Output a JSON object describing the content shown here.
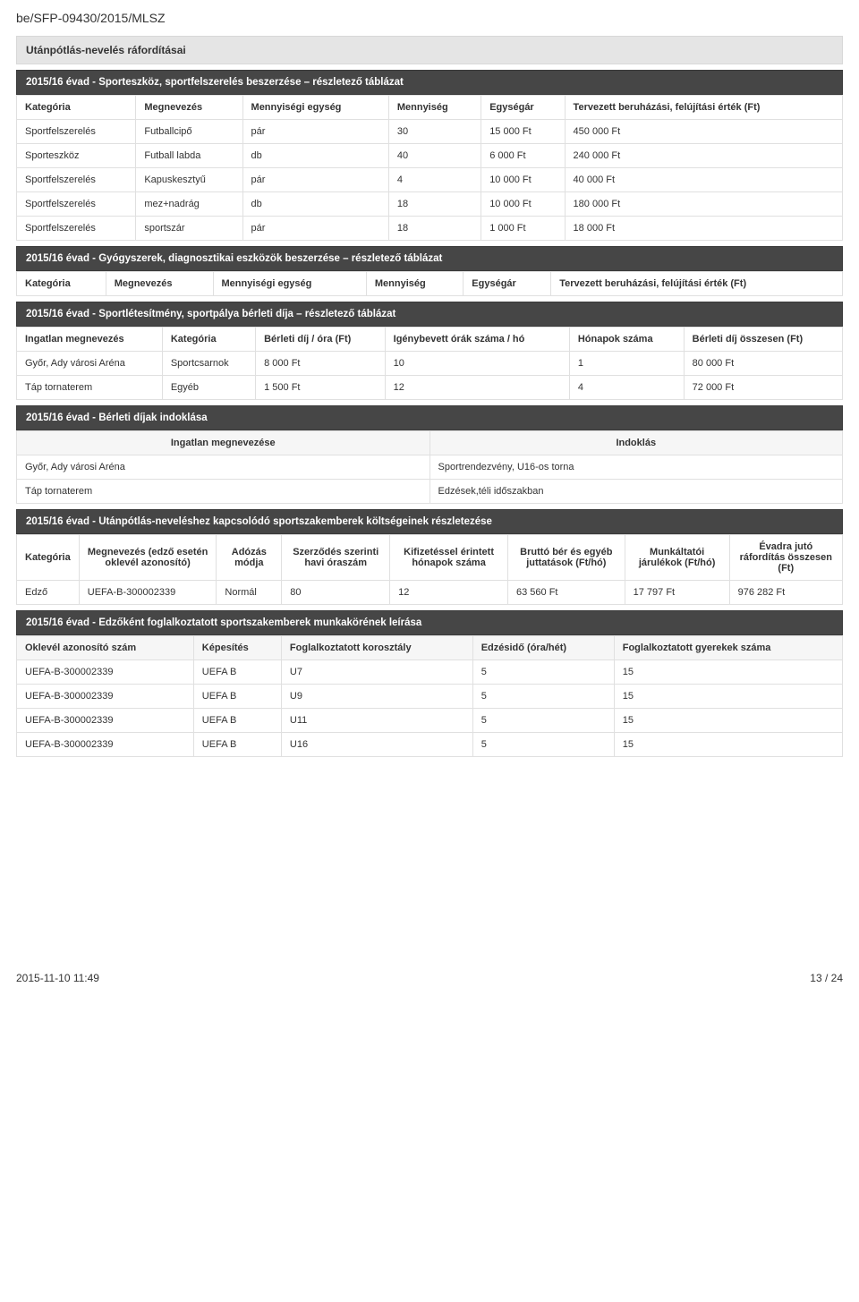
{
  "doc_id": "be/SFP-09430/2015/MLSZ",
  "panels": {
    "main": "Utánpótlás-nevelés ráfordításai",
    "t1": "2015/16 évad - Sporteszköz, sportfelszerelés beszerzése – részletező táblázat",
    "t2": "2015/16 évad - Gyógyszerek, diagnosztikai eszközök beszerzése – részletező táblázat",
    "t3": "2015/16 évad - Sportlétesítmény, sportpálya bérleti díja – részletező táblázat",
    "t4": "2015/16 évad - Bérleti díjak indoklása",
    "t5": "2015/16 évad - Utánpótlás-neveléshez kapcsolódó sportszakemberek költségeinek részletezése",
    "t6": "2015/16 évad - Edzőként foglalkoztatott sportszakemberek munkakörének leírása"
  },
  "t1": {
    "cols": [
      "Kategória",
      "Megnevezés",
      "Mennyiségi egység",
      "Mennyiség",
      "Egységár",
      "Tervezett beruházási, felújítási érték (Ft)"
    ],
    "rows": [
      [
        "Sportfelszerelés",
        "Futballcipő",
        "pár",
        "30",
        "15 000 Ft",
        "450 000 Ft"
      ],
      [
        "Sporteszköz",
        "Futball labda",
        "db",
        "40",
        "6 000 Ft",
        "240 000 Ft"
      ],
      [
        "Sportfelszerelés",
        "Kapuskesztyű",
        "pár",
        "4",
        "10 000 Ft",
        "40 000 Ft"
      ],
      [
        "Sportfelszerelés",
        "mez+nadrág",
        "db",
        "18",
        "10 000 Ft",
        "180 000 Ft"
      ],
      [
        "Sportfelszerelés",
        "sportszár",
        "pár",
        "18",
        "1 000 Ft",
        "18 000 Ft"
      ]
    ]
  },
  "t2": {
    "cols": [
      "Kategória",
      "Megnevezés",
      "Mennyiségi egység",
      "Mennyiség",
      "Egységár",
      "Tervezett beruházási, felújítási érték (Ft)"
    ]
  },
  "t3": {
    "cols": [
      "Ingatlan megnevezés",
      "Kategória",
      "Bérleti díj / óra (Ft)",
      "Igénybevett órák száma / hó",
      "Hónapok száma",
      "Bérleti díj összesen (Ft)"
    ],
    "rows": [
      [
        "Győr, Ady városi Aréna",
        "Sportcsarnok",
        "8 000 Ft",
        "10",
        "1",
        "80 000 Ft"
      ],
      [
        "Táp tornaterem",
        "Egyéb",
        "1 500 Ft",
        "12",
        "4",
        "72 000 Ft"
      ]
    ]
  },
  "t4": {
    "cols": [
      "Ingatlan megnevezése",
      "Indoklás"
    ],
    "rows": [
      [
        "Győr, Ady városi Aréna",
        "Sportrendezvény, U16-os torna"
      ],
      [
        "Táp tornaterem",
        "Edzések,téli időszakban"
      ]
    ]
  },
  "t5": {
    "cols": [
      "Kategória",
      "Megnevezés (edző esetén oklevél azonosító)",
      "Adózás módja",
      "Szerződés szerinti havi óraszám",
      "Kifizetéssel érintett hónapok száma",
      "Bruttó bér és egyéb juttatások (Ft/hó)",
      "Munkáltatói járulékok (Ft/hó)",
      "Évadra jutó ráfordítás összesen (Ft)"
    ],
    "rows": [
      [
        "Edző",
        "UEFA-B-300002339",
        "Normál",
        "80",
        "12",
        "63 560 Ft",
        "17 797 Ft",
        "976 282 Ft"
      ]
    ]
  },
  "t6": {
    "cols": [
      "Oklevél azonosító szám",
      "Képesítés",
      "Foglalkoztatott korosztály",
      "Edzésidő (óra/hét)",
      "Foglalkoztatott gyerekek száma"
    ],
    "rows": [
      [
        "UEFA-B-300002339",
        "UEFA B",
        "U7",
        "5",
        "15"
      ],
      [
        "UEFA-B-300002339",
        "UEFA B",
        "U9",
        "5",
        "15"
      ],
      [
        "UEFA-B-300002339",
        "UEFA B",
        "U11",
        "5",
        "15"
      ],
      [
        "UEFA-B-300002339",
        "UEFA B",
        "U16",
        "5",
        "15"
      ]
    ]
  },
  "footer": {
    "left": "2015-11-10 11:49",
    "right": "13 / 24"
  },
  "style": {
    "background_color": "#ffffff",
    "panel_light_bg": "#e5e5e5",
    "panel_dark_bg": "#464646",
    "border_color": "#e0e0e0",
    "th_bg": "#f6f6f6",
    "text_color": "#333333",
    "body_fontsize": 11,
    "docid_fontsize": 14,
    "t4_col_widths": [
      "50%",
      "50%"
    ]
  }
}
